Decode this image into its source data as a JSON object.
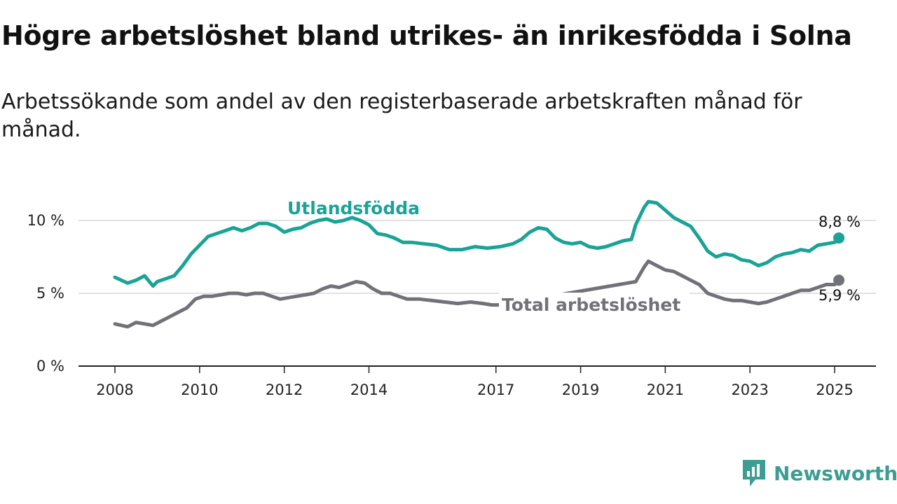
{
  "title": "Högre arbetslöshet bland utrikes- än inrikesfödda i Solna",
  "subtitle": "Arbetssökande som andel av den registerbaserade arbetskraften månad för månad.",
  "brand": {
    "name": "Newsworthy",
    "color": "#3c9e93",
    "icon": "newsworthy-logo-icon"
  },
  "chart_data": {
    "type": "line",
    "title": "Högre arbetslöshet bland utrikes- än inrikesfödda i Solna",
    "subtitle": "Arbetssökande som andel av den registerbaserade arbetskraften månad för månad.",
    "xlabel": "",
    "ylabel": "",
    "x_range": [
      2007.9,
      2025.9
    ],
    "ylim": [
      0,
      12
    ],
    "x_ticks": [
      2008,
      2010,
      2012,
      2014,
      2017,
      2019,
      2021,
      2023,
      2025
    ],
    "x_tick_labels": [
      "2008",
      "2010",
      "2012",
      "2014",
      "2017",
      "2019",
      "2021",
      "2023",
      "2025"
    ],
    "y_ticks": [
      0,
      5,
      10
    ],
    "y_tick_labels": [
      "0 %",
      "5 %",
      "10 %"
    ],
    "grid": "horizontal",
    "legend": "direct labels on lines",
    "series": [
      {
        "name": "Utlandsfödda",
        "color": "#1aa396",
        "end_label": "8,8 %",
        "points": [
          [
            2008.0,
            6.1
          ],
          [
            2008.3,
            5.7
          ],
          [
            2008.5,
            5.9
          ],
          [
            2008.7,
            6.2
          ],
          [
            2008.9,
            5.5
          ],
          [
            2009.0,
            5.8
          ],
          [
            2009.2,
            6.0
          ],
          [
            2009.4,
            6.2
          ],
          [
            2009.6,
            6.9
          ],
          [
            2009.8,
            7.7
          ],
          [
            2010.0,
            8.3
          ],
          [
            2010.2,
            8.9
          ],
          [
            2010.4,
            9.1
          ],
          [
            2010.6,
            9.3
          ],
          [
            2010.8,
            9.5
          ],
          [
            2011.0,
            9.3
          ],
          [
            2011.2,
            9.5
          ],
          [
            2011.4,
            9.8
          ],
          [
            2011.6,
            9.8
          ],
          [
            2011.8,
            9.6
          ],
          [
            2012.0,
            9.2
          ],
          [
            2012.2,
            9.4
          ],
          [
            2012.4,
            9.5
          ],
          [
            2012.6,
            9.8
          ],
          [
            2012.8,
            10.0
          ],
          [
            2013.0,
            10.1
          ],
          [
            2013.2,
            9.9
          ],
          [
            2013.4,
            10.0
          ],
          [
            2013.6,
            10.2
          ],
          [
            2013.8,
            10.0
          ],
          [
            2014.0,
            9.7
          ],
          [
            2014.2,
            9.1
          ],
          [
            2014.4,
            9.0
          ],
          [
            2014.6,
            8.8
          ],
          [
            2014.8,
            8.5
          ],
          [
            2015.0,
            8.5
          ],
          [
            2015.3,
            8.4
          ],
          [
            2015.6,
            8.3
          ],
          [
            2015.9,
            8.0
          ],
          [
            2016.2,
            8.0
          ],
          [
            2016.5,
            8.2
          ],
          [
            2016.8,
            8.1
          ],
          [
            2017.1,
            8.2
          ],
          [
            2017.4,
            8.4
          ],
          [
            2017.6,
            8.7
          ],
          [
            2017.8,
            9.2
          ],
          [
            2018.0,
            9.5
          ],
          [
            2018.2,
            9.4
          ],
          [
            2018.4,
            8.8
          ],
          [
            2018.6,
            8.5
          ],
          [
            2018.8,
            8.4
          ],
          [
            2019.0,
            8.5
          ],
          [
            2019.2,
            8.2
          ],
          [
            2019.4,
            8.1
          ],
          [
            2019.6,
            8.2
          ],
          [
            2019.8,
            8.4
          ],
          [
            2020.0,
            8.6
          ],
          [
            2020.2,
            8.7
          ],
          [
            2020.3,
            9.7
          ],
          [
            2020.5,
            10.9
          ],
          [
            2020.6,
            11.3
          ],
          [
            2020.8,
            11.2
          ],
          [
            2021.0,
            10.7
          ],
          [
            2021.2,
            10.2
          ],
          [
            2021.4,
            9.9
          ],
          [
            2021.6,
            9.6
          ],
          [
            2021.8,
            8.8
          ],
          [
            2022.0,
            7.9
          ],
          [
            2022.2,
            7.5
          ],
          [
            2022.4,
            7.7
          ],
          [
            2022.6,
            7.6
          ],
          [
            2022.8,
            7.3
          ],
          [
            2023.0,
            7.2
          ],
          [
            2023.2,
            6.9
          ],
          [
            2023.4,
            7.1
          ],
          [
            2023.6,
            7.5
          ],
          [
            2023.8,
            7.7
          ],
          [
            2024.0,
            7.8
          ],
          [
            2024.2,
            8.0
          ],
          [
            2024.4,
            7.9
          ],
          [
            2024.6,
            8.3
          ],
          [
            2024.8,
            8.4
          ],
          [
            2025.0,
            8.5
          ],
          [
            2025.1,
            8.8
          ]
        ]
      },
      {
        "name": "Total arbetslöshet",
        "color": "#717178",
        "end_label": "5,9 %",
        "points": [
          [
            2008.0,
            2.9
          ],
          [
            2008.3,
            2.7
          ],
          [
            2008.5,
            3.0
          ],
          [
            2008.7,
            2.9
          ],
          [
            2008.9,
            2.8
          ],
          [
            2009.1,
            3.1
          ],
          [
            2009.3,
            3.4
          ],
          [
            2009.5,
            3.7
          ],
          [
            2009.7,
            4.0
          ],
          [
            2009.9,
            4.6
          ],
          [
            2010.1,
            4.8
          ],
          [
            2010.3,
            4.8
          ],
          [
            2010.5,
            4.9
          ],
          [
            2010.7,
            5.0
          ],
          [
            2010.9,
            5.0
          ],
          [
            2011.1,
            4.9
          ],
          [
            2011.3,
            5.0
          ],
          [
            2011.5,
            5.0
          ],
          [
            2011.7,
            4.8
          ],
          [
            2011.9,
            4.6
          ],
          [
            2012.1,
            4.7
          ],
          [
            2012.3,
            4.8
          ],
          [
            2012.5,
            4.9
          ],
          [
            2012.7,
            5.0
          ],
          [
            2012.9,
            5.3
          ],
          [
            2013.1,
            5.5
          ],
          [
            2013.3,
            5.4
          ],
          [
            2013.5,
            5.6
          ],
          [
            2013.7,
            5.8
          ],
          [
            2013.9,
            5.7
          ],
          [
            2014.1,
            5.3
          ],
          [
            2014.3,
            5.0
          ],
          [
            2014.5,
            5.0
          ],
          [
            2014.7,
            4.8
          ],
          [
            2014.9,
            4.6
          ],
          [
            2015.2,
            4.6
          ],
          [
            2015.5,
            4.5
          ],
          [
            2015.8,
            4.4
          ],
          [
            2016.1,
            4.3
          ],
          [
            2016.4,
            4.4
          ],
          [
            2016.7,
            4.3
          ],
          [
            2016.9,
            4.2
          ],
          [
            2017.1,
            4.2
          ],
          [
            2020.3,
            5.8
          ],
          [
            2020.5,
            6.8
          ],
          [
            2020.6,
            7.2
          ],
          [
            2020.8,
            6.9
          ],
          [
            2021.0,
            6.6
          ],
          [
            2021.2,
            6.5
          ],
          [
            2021.4,
            6.2
          ],
          [
            2021.6,
            5.9
          ],
          [
            2021.8,
            5.6
          ],
          [
            2022.0,
            5.0
          ],
          [
            2022.2,
            4.8
          ],
          [
            2022.4,
            4.6
          ],
          [
            2022.6,
            4.5
          ],
          [
            2022.8,
            4.5
          ],
          [
            2023.0,
            4.4
          ],
          [
            2023.2,
            4.3
          ],
          [
            2023.4,
            4.4
          ],
          [
            2023.6,
            4.6
          ],
          [
            2023.8,
            4.8
          ],
          [
            2024.0,
            5.0
          ],
          [
            2024.2,
            5.2
          ],
          [
            2024.4,
            5.2
          ],
          [
            2024.6,
            5.4
          ],
          [
            2024.8,
            5.6
          ],
          [
            2025.0,
            5.6
          ],
          [
            2025.1,
            5.9
          ]
        ]
      }
    ]
  }
}
